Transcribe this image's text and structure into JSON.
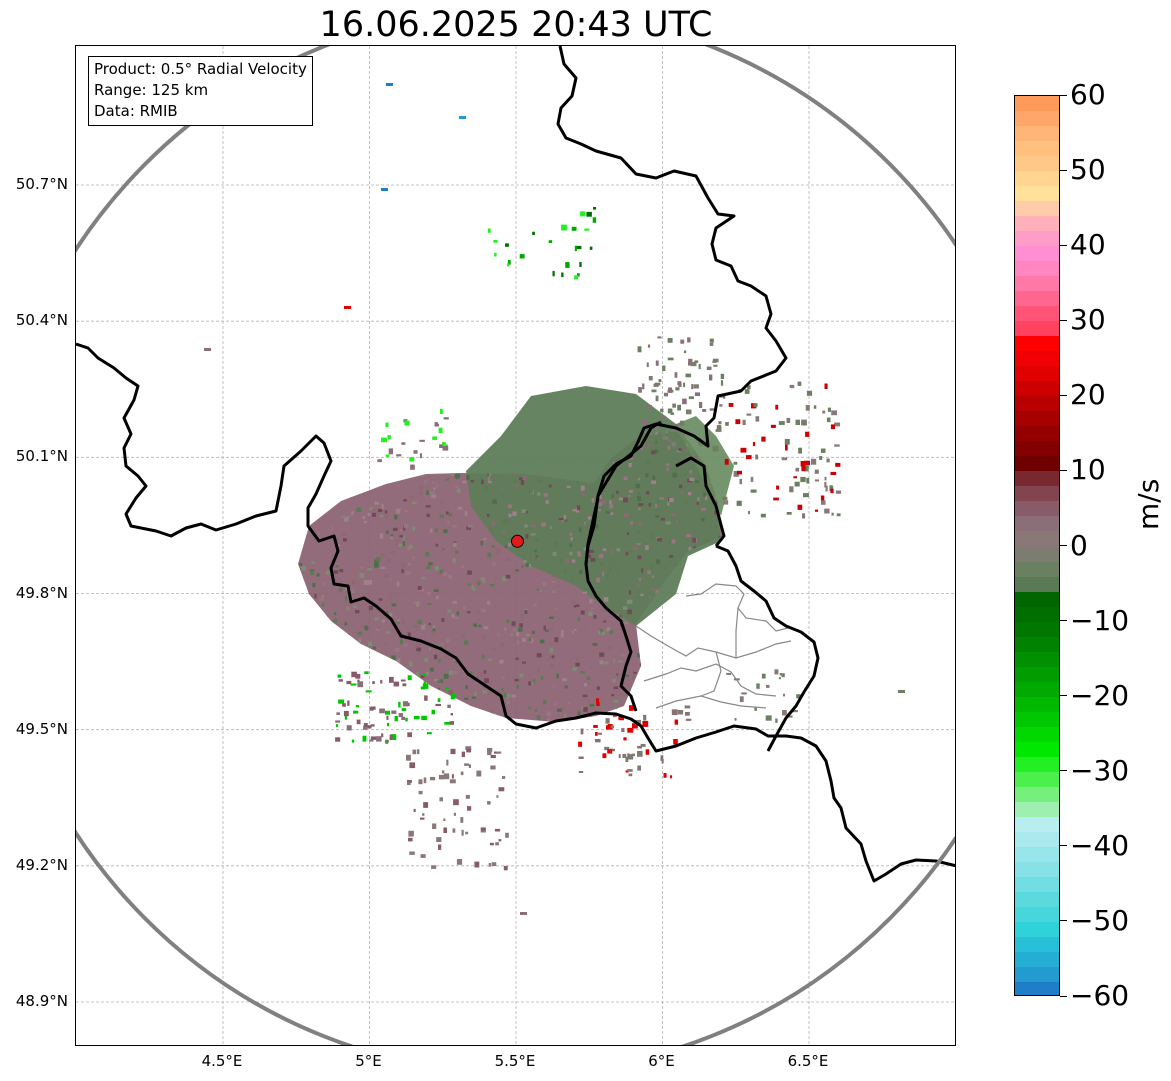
{
  "title": "16.06.2025 20:43 UTC",
  "info_box": {
    "product": "Product: 0.5° Radial Velocity",
    "range": "Range: 125 km",
    "data": "Data: RMIB"
  },
  "axes": {
    "y_ticks": [
      {
        "label": "50.7°N",
        "value": 50.7
      },
      {
        "label": "50.4°N",
        "value": 50.4
      },
      {
        "label": "50.1°N",
        "value": 50.1
      },
      {
        "label": "49.8°N",
        "value": 49.8
      },
      {
        "label": "49.5°N",
        "value": 49.5
      },
      {
        "label": "49.2°N",
        "value": 49.2
      },
      {
        "label": "48.9°N",
        "value": 48.9
      }
    ],
    "x_ticks": [
      {
        "label": "4.5°E",
        "value": 4.5
      },
      {
        "label": "5°E",
        "value": 5.0
      },
      {
        "label": "5.5°E",
        "value": 5.5
      },
      {
        "label": "6°E",
        "value": 6.0
      },
      {
        "label": "6.5°E",
        "value": 6.5
      }
    ],
    "lon_range": [
      4.0,
      7.0
    ],
    "lat_range": [
      48.8,
      51.0
    ],
    "grid": true
  },
  "radar": {
    "site": {
      "lon": 5.505,
      "lat": 49.915
    },
    "range_km": 125,
    "site_marker_color": "#e31a1c",
    "range_ring_color": "#808080"
  },
  "colorbar": {
    "label": "m/s",
    "min": -60,
    "max": 60,
    "ticks": [
      {
        "value": 60,
        "label": "60"
      },
      {
        "value": 50,
        "label": "50"
      },
      {
        "value": 40,
        "label": "40"
      },
      {
        "value": 30,
        "label": "30"
      },
      {
        "value": 20,
        "label": "20"
      },
      {
        "value": 10,
        "label": "10"
      },
      {
        "value": 0,
        "label": "0"
      },
      {
        "value": -10,
        "label": "−10"
      },
      {
        "value": -20,
        "label": "−20"
      },
      {
        "value": -30,
        "label": "−30"
      },
      {
        "value": -40,
        "label": "−40"
      },
      {
        "value": -50,
        "label": "−50"
      },
      {
        "value": -60,
        "label": "−60"
      }
    ],
    "bands": [
      {
        "from": 58,
        "to": 60,
        "color": "#ff9a5a"
      },
      {
        "from": 56,
        "to": 58,
        "color": "#ffa76a"
      },
      {
        "from": 54,
        "to": 56,
        "color": "#ffb478"
      },
      {
        "from": 52,
        "to": 54,
        "color": "#ffc07e"
      },
      {
        "from": 50,
        "to": 52,
        "color": "#ffc888"
      },
      {
        "from": 48,
        "to": 50,
        "color": "#ffd590"
      },
      {
        "from": 46,
        "to": 48,
        "color": "#ffe19c"
      },
      {
        "from": 44,
        "to": 46,
        "color": "#ffcba8"
      },
      {
        "from": 42,
        "to": 44,
        "color": "#ffb0b8"
      },
      {
        "from": 40,
        "to": 42,
        "color": "#ff9cc8"
      },
      {
        "from": 38,
        "to": 40,
        "color": "#ff8fd2"
      },
      {
        "from": 36,
        "to": 38,
        "color": "#ff86c0"
      },
      {
        "from": 34,
        "to": 36,
        "color": "#ff78a8"
      },
      {
        "from": 32,
        "to": 34,
        "color": "#ff6690"
      },
      {
        "from": 30,
        "to": 32,
        "color": "#ff5478"
      },
      {
        "from": 28,
        "to": 30,
        "color": "#ff4260"
      },
      {
        "from": 26,
        "to": 28,
        "color": "#ff0000"
      },
      {
        "from": 24,
        "to": 26,
        "color": "#f00000"
      },
      {
        "from": 22,
        "to": 24,
        "color": "#e00000"
      },
      {
        "from": 20,
        "to": 22,
        "color": "#cc0000"
      },
      {
        "from": 18,
        "to": 20,
        "color": "#b80000"
      },
      {
        "from": 16,
        "to": 18,
        "color": "#a60000"
      },
      {
        "from": 14,
        "to": 16,
        "color": "#940000"
      },
      {
        "from": 12,
        "to": 14,
        "color": "#820000"
      },
      {
        "from": 10,
        "to": 12,
        "color": "#6e0000"
      },
      {
        "from": 8,
        "to": 10,
        "color": "#7a2830"
      },
      {
        "from": 6,
        "to": 8,
        "color": "#82444e"
      },
      {
        "from": 4,
        "to": 6,
        "color": "#875c68"
      },
      {
        "from": 2,
        "to": 4,
        "color": "#8a6e78"
      },
      {
        "from": 0,
        "to": 2,
        "color": "#8a7878"
      },
      {
        "from": -2,
        "to": 0,
        "color": "#7c7c70"
      },
      {
        "from": -4,
        "to": -2,
        "color": "#6a8060"
      },
      {
        "from": -6,
        "to": -4,
        "color": "#5a7a55"
      },
      {
        "from": -8,
        "to": -6,
        "color": "#006600"
      },
      {
        "from": -10,
        "to": -8,
        "color": "#006e00"
      },
      {
        "from": -12,
        "to": -10,
        "color": "#007800"
      },
      {
        "from": -14,
        "to": -12,
        "color": "#008400"
      },
      {
        "from": -16,
        "to": -14,
        "color": "#009000"
      },
      {
        "from": -18,
        "to": -16,
        "color": "#009c00"
      },
      {
        "from": -20,
        "to": -18,
        "color": "#00aa00"
      },
      {
        "from": -22,
        "to": -20,
        "color": "#00b800"
      },
      {
        "from": -24,
        "to": -22,
        "color": "#00c800"
      },
      {
        "from": -26,
        "to": -24,
        "color": "#00d800"
      },
      {
        "from": -28,
        "to": -26,
        "color": "#00e800"
      },
      {
        "from": -30,
        "to": -28,
        "color": "#22f022"
      },
      {
        "from": -32,
        "to": -30,
        "color": "#4cf04c"
      },
      {
        "from": -34,
        "to": -32,
        "color": "#76f07c"
      },
      {
        "from": -36,
        "to": -34,
        "color": "#9ef0b0"
      },
      {
        "from": -38,
        "to": -36,
        "color": "#b8eef0"
      },
      {
        "from": -40,
        "to": -38,
        "color": "#aaeaee"
      },
      {
        "from": -42,
        "to": -40,
        "color": "#98e6ea"
      },
      {
        "from": -44,
        "to": -42,
        "color": "#86e2e6"
      },
      {
        "from": -46,
        "to": -44,
        "color": "#70dee2"
      },
      {
        "from": -48,
        "to": -46,
        "color": "#5adade"
      },
      {
        "from": -50,
        "to": -48,
        "color": "#46d6dc"
      },
      {
        "from": -52,
        "to": -50,
        "color": "#30d2da"
      },
      {
        "from": -54,
        "to": -52,
        "color": "#28c0d8"
      },
      {
        "from": -56,
        "to": -54,
        "color": "#24aed4"
      },
      {
        "from": -58,
        "to": -56,
        "color": "#229cd0"
      },
      {
        "from": -60,
        "to": -58,
        "color": "#1f7ec8"
      }
    ]
  }
}
